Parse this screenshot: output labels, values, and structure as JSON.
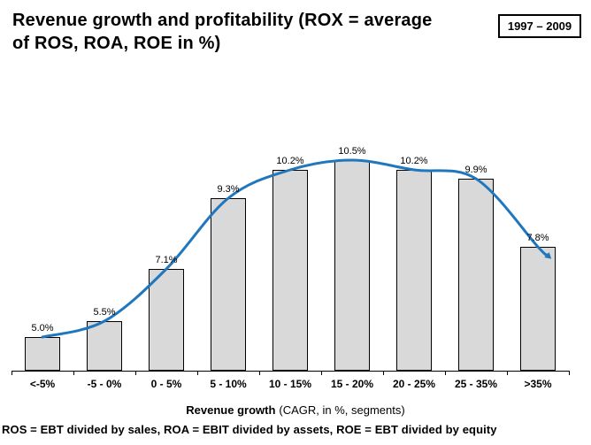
{
  "title": {
    "text": "Revenue growth and profitability (ROX = average of ROS, ROA, ROE in %)",
    "lines": [
      "Revenue growth and profitability (ROX = average",
      "of ROS, ROA, ROE in %)"
    ]
  },
  "period_badge": "1997 – 2009",
  "chart_data": {
    "type": "bar",
    "title": "Revenue growth and profitability (ROX = average of ROS, ROA, ROE in %)",
    "categories": [
      "<-5%",
      "-5 - 0%",
      "0 - 5%",
      "5 - 10%",
      "10 - 15%",
      "15 - 20%",
      "20 - 25%",
      "25 - 35%",
      ">35%"
    ],
    "values": [
      5.0,
      5.5,
      7.1,
      9.3,
      10.2,
      10.5,
      10.2,
      9.9,
      7.8
    ],
    "value_labels": [
      "5.0%",
      "5.5%",
      "7.1%",
      "9.3%",
      "10.2%",
      "10.5%",
      "10.2%",
      "9.9%",
      "7.8%"
    ],
    "xlabel": "Revenue growth (CAGR, in %, segments)",
    "xlabel_bold": "Revenue growth",
    "xlabel_rest": "(CAGR, in %, segments)",
    "ylabel": "",
    "ylim": [
      3.95,
      12.7
    ],
    "y_axis_visible": false,
    "grid": false,
    "legend": false,
    "bar_fill": "#d9d9d9",
    "bar_border": "#000000",
    "trend_line": {
      "type": "smooth",
      "color": "#2077bd",
      "follows": "bar-top centers",
      "arrow_end": true
    }
  },
  "footnote": "ROS = EBT divided by sales, ROA = EBIT divided by assets, ROE = EBT divided by equity"
}
